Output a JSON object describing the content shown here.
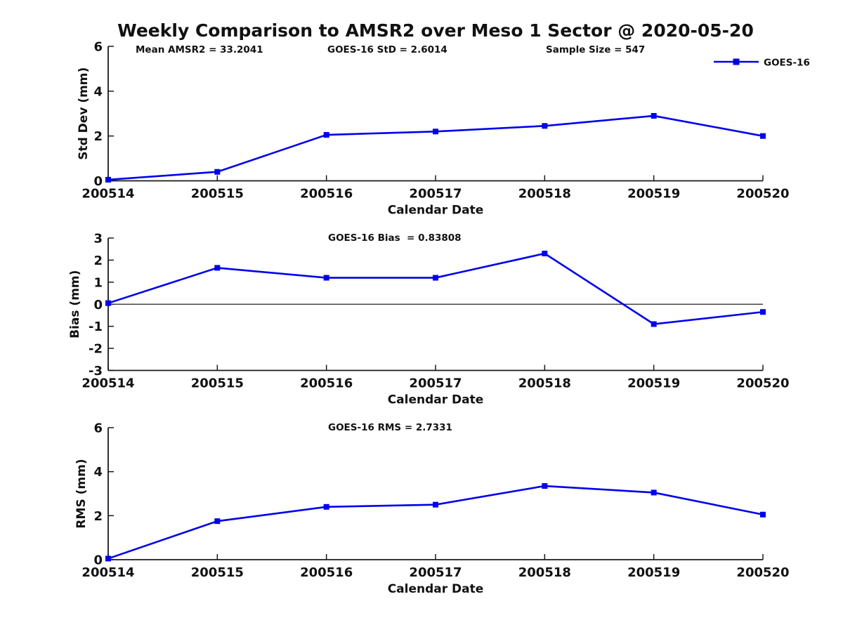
{
  "figure": {
    "title": "Weekly Comparison to AMSR2 over Meso 1 Sector @ 2020-05-20",
    "line_color": "#0000EE",
    "axis_color": "#1a1a1a",
    "legend_label": "GOES-16"
  },
  "chart_data": [
    {
      "type": "line",
      "name": "stddev",
      "categories": [
        "200514",
        "200515",
        "200516",
        "200517",
        "200518",
        "200519",
        "200520"
      ],
      "series": [
        {
          "name": "GOES-16",
          "values": [
            0.05,
            0.4,
            2.05,
            2.2,
            2.45,
            2.9,
            2.0
          ]
        }
      ],
      "xlabel": "Calendar Date",
      "ylabel": "Std Dev (mm)",
      "ylim": [
        0,
        6
      ],
      "yticks": [
        0,
        2,
        4,
        6
      ],
      "grid": false,
      "zero_line": false,
      "legend_visible": true,
      "legend_position": "top-right",
      "annotations": [
        "Mean AMSR2 = 33.2041",
        "GOES-16 StD = 2.6014",
        "Sample Size = 547"
      ]
    },
    {
      "type": "line",
      "name": "bias",
      "categories": [
        "200514",
        "200515",
        "200516",
        "200517",
        "200518",
        "200519",
        "200520"
      ],
      "series": [
        {
          "name": "GOES-16",
          "values": [
            0.05,
            1.65,
            1.2,
            1.2,
            2.3,
            -0.9,
            -0.35
          ]
        }
      ],
      "xlabel": "Calendar Date",
      "ylabel": "Bias (mm)",
      "ylim": [
        -3,
        3
      ],
      "yticks": [
        3,
        2,
        1,
        0,
        -1,
        -2,
        -3
      ],
      "grid": false,
      "zero_line": true,
      "legend_visible": false,
      "annotations": [
        "GOES-16 Bias  = 0.83808"
      ]
    },
    {
      "type": "line",
      "name": "rms",
      "categories": [
        "200514",
        "200515",
        "200516",
        "200517",
        "200518",
        "200519",
        "200520"
      ],
      "series": [
        {
          "name": "GOES-16",
          "values": [
            0.05,
            1.75,
            2.4,
            2.5,
            3.35,
            3.05,
            2.05
          ]
        }
      ],
      "xlabel": "Calendar Date",
      "ylabel": "RMS (mm)",
      "ylim": [
        0,
        6
      ],
      "yticks": [
        0,
        2,
        4,
        6
      ],
      "grid": false,
      "zero_line": false,
      "legend_visible": false,
      "annotations": [
        "GOES-16 RMS = 2.7331"
      ]
    }
  ]
}
